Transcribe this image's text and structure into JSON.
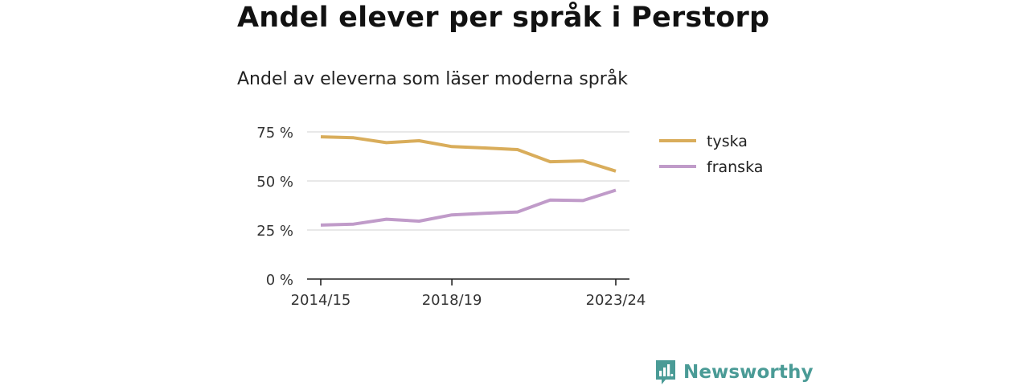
{
  "header": {
    "title": "Andel elever per språk i Perstorp",
    "subtitle": "Andel av eleverna som läser moderna språk"
  },
  "brand": {
    "name": "Newsworthy",
    "color": "#4a9b96"
  },
  "chart_data": {
    "type": "line",
    "title": "Andel elever per språk i Perstorp",
    "subtitle": "Andel av eleverna som läser moderna språk",
    "xlabel": "",
    "ylabel": "",
    "x": [
      "2014/15",
      "2015/16",
      "2016/17",
      "2017/18",
      "2018/19",
      "2019/20",
      "2020/21",
      "2021/22",
      "2022/23",
      "2023/24"
    ],
    "x_tick_labels": [
      "2014/15",
      "2018/19",
      "2023/24"
    ],
    "y_ticks": [
      0,
      25,
      50,
      75
    ],
    "y_tick_labels": [
      "0 %",
      "25 %",
      "50 %",
      "75 %"
    ],
    "ylim": [
      0,
      75
    ],
    "grid": true,
    "legend_position": "right",
    "series": [
      {
        "name": "tyska",
        "color": "#d9ad5b",
        "values": [
          72.5,
          72,
          69.5,
          70.5,
          67.5,
          66.8,
          66,
          59.8,
          60.2,
          55
        ]
      },
      {
        "name": "franska",
        "color": "#c09bc9",
        "values": [
          27.5,
          28,
          30.5,
          29.5,
          32.7,
          33.5,
          34.2,
          40.3,
          40,
          45.3
        ]
      }
    ]
  }
}
